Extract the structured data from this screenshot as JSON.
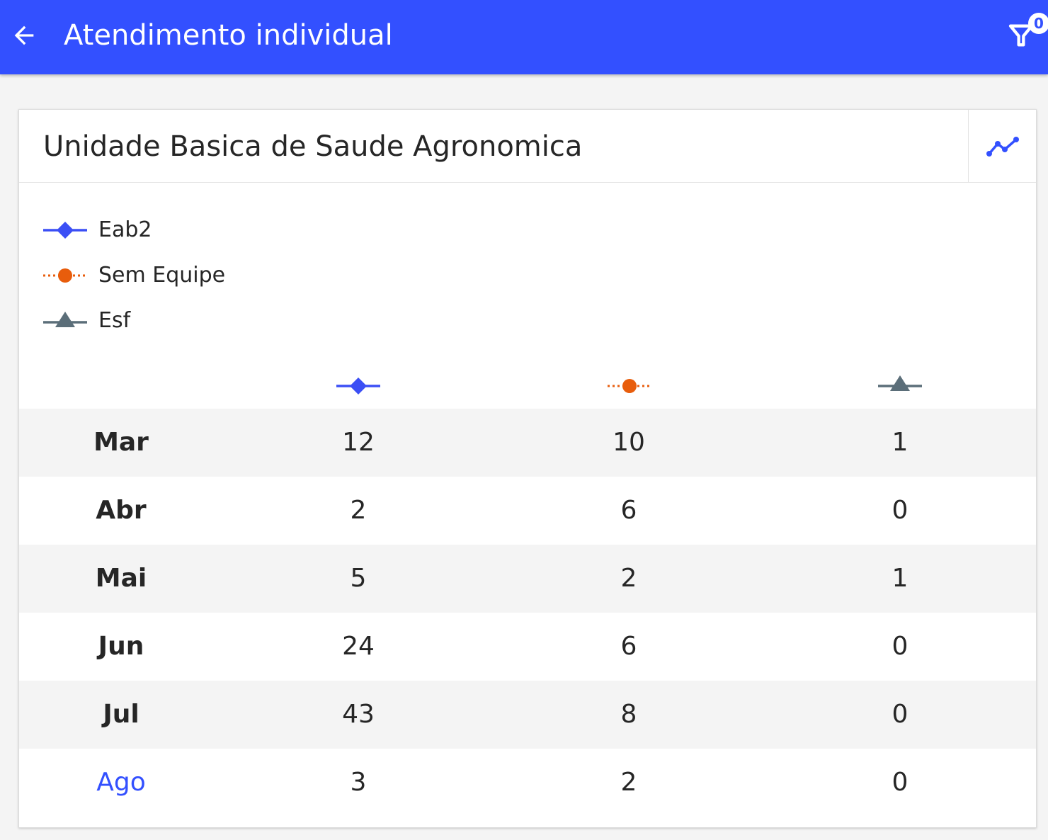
{
  "theme": {
    "primary": "#3350ff",
    "series_colors": [
      "#3b4ff5",
      "#e85d0c",
      "#5b6e79"
    ]
  },
  "header": {
    "title": "Atendimento individual",
    "back_icon": "arrow-left-icon",
    "filter_icon": "filter-icon",
    "filter_count": "0"
  },
  "card": {
    "title": "Unidade Basica de Saude Agronomica",
    "chart_toggle_icon": "line-chart-icon"
  },
  "legend": [
    {
      "label": "Eab2",
      "marker": "diamond",
      "line": "solid",
      "color": "#3b4ff5"
    },
    {
      "label": "Sem Equipe",
      "marker": "circle",
      "line": "dotted",
      "color": "#e85d0c"
    },
    {
      "label": "Esf",
      "marker": "triangle",
      "line": "solid",
      "color": "#5b6e79"
    }
  ],
  "table": {
    "rows": [
      {
        "month": "Mar",
        "values": [
          "12",
          "10",
          "1"
        ],
        "current": false
      },
      {
        "month": "Abr",
        "values": [
          "2",
          "6",
          "0"
        ],
        "current": false
      },
      {
        "month": "Mai",
        "values": [
          "5",
          "2",
          "1"
        ],
        "current": false
      },
      {
        "month": "Jun",
        "values": [
          "24",
          "6",
          "0"
        ],
        "current": false
      },
      {
        "month": "Jul",
        "values": [
          "43",
          "8",
          "0"
        ],
        "current": false
      },
      {
        "month": "Ago",
        "values": [
          "3",
          "2",
          "0"
        ],
        "current": true
      }
    ]
  }
}
